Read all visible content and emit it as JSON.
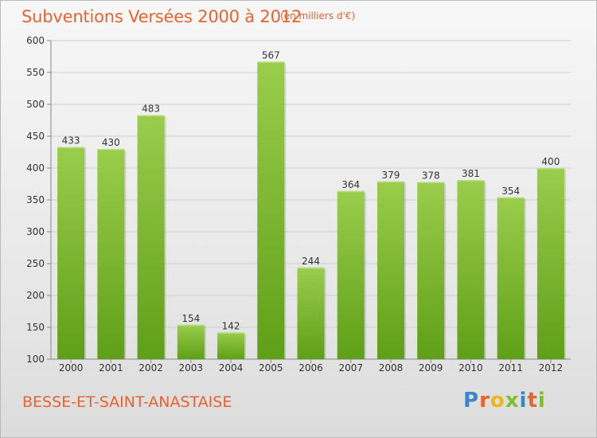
{
  "header": {
    "title": "Subventions Versées 2000 à 2012",
    "unit_note": "(en milliers d'€)"
  },
  "footer": {
    "commune": "BESSE-ET-SAINT-ANASTAISE",
    "logo_text": "Proxiti"
  },
  "colors": {
    "title": "#e7632f",
    "bar_light": "#9acd4c",
    "bar_dark": "#5f9f18",
    "logo_letters": [
      "#3a86c8",
      "#e7632f",
      "#f0b41c",
      "#7fbf2a",
      "#3a86c8",
      "#e7632f",
      "#7fbf2a"
    ]
  },
  "chart_data": {
    "type": "bar",
    "title": "Subventions Versées 2000 à 2012",
    "subtitle": "(en milliers d'€)",
    "xlabel": "",
    "ylabel": "",
    "categories": [
      "2000",
      "2001",
      "2002",
      "2003",
      "2004",
      "2005",
      "2006",
      "2007",
      "2008",
      "2009",
      "2010",
      "2011",
      "2012"
    ],
    "values": [
      433,
      430,
      483,
      154,
      142,
      567,
      244,
      364,
      379,
      378,
      381,
      354,
      400
    ],
    "ylim": [
      100,
      600
    ],
    "yticks": [
      100,
      150,
      200,
      250,
      300,
      350,
      400,
      450,
      500,
      550,
      600
    ],
    "grid": true,
    "data_labels": true
  }
}
